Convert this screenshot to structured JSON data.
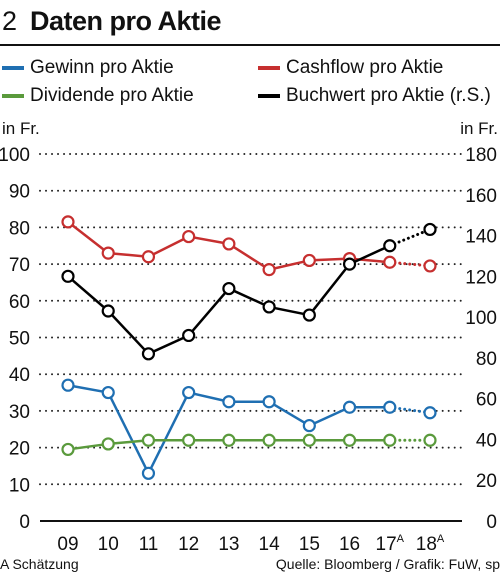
{
  "header": {
    "number": "2",
    "title": "Daten pro Aktie"
  },
  "legend": [
    {
      "name": "Gewinn pro Aktie",
      "color": "#1f6fb2"
    },
    {
      "name": "Cashflow pro Aktie",
      "color": "#c62f2f"
    },
    {
      "name": "Dividende pro Aktie",
      "color": "#5a9a3c"
    },
    {
      "name": "Buchwert  pro Aktie (r.S.)",
      "color": "#000000"
    }
  ],
  "footer": {
    "left": "A Schätzung",
    "right": "Quelle: Bloomberg / Grafik: FuW, sp"
  },
  "chart_data": {
    "type": "line",
    "unit_left": "in Fr.",
    "unit_right": "in Fr.",
    "categories": [
      "09",
      "10",
      "11",
      "12",
      "13",
      "14",
      "15",
      "16",
      "17",
      "18"
    ],
    "category_superscripts": [
      "",
      "",
      "",
      "",
      "",
      "",
      "",
      "",
      "A",
      "A"
    ],
    "estimate_from_index": 8,
    "ylim_left": [
      0,
      100
    ],
    "yticks_left": [
      0,
      10,
      20,
      30,
      40,
      50,
      60,
      70,
      80,
      90,
      100
    ],
    "ylim_right": [
      0,
      180
    ],
    "yticks_right": [
      0,
      20,
      40,
      60,
      80,
      100,
      120,
      140,
      160,
      180
    ],
    "grid": true,
    "series": [
      {
        "name": "Cashflow pro Aktie",
        "axis": "left",
        "color": "#c62f2f",
        "values": [
          81.5,
          73,
          72,
          77.5,
          75.5,
          68.5,
          71,
          71.5,
          70.5,
          69.5
        ]
      },
      {
        "name": "Gewinn pro Aktie",
        "axis": "left",
        "color": "#1f6fb2",
        "values": [
          37,
          35,
          13,
          35,
          32.5,
          32.5,
          26,
          31,
          31,
          29.5
        ]
      },
      {
        "name": "Dividende pro Aktie",
        "axis": "left",
        "color": "#5a9a3c",
        "values": [
          19.5,
          21,
          22,
          22,
          22,
          22,
          22,
          22,
          22,
          22
        ]
      },
      {
        "name": "Buchwert  pro Aktie (r.S.)",
        "axis": "right",
        "color": "#000000",
        "values": [
          120,
          103,
          82,
          91,
          114,
          105,
          101,
          126,
          135,
          143
        ]
      }
    ]
  }
}
